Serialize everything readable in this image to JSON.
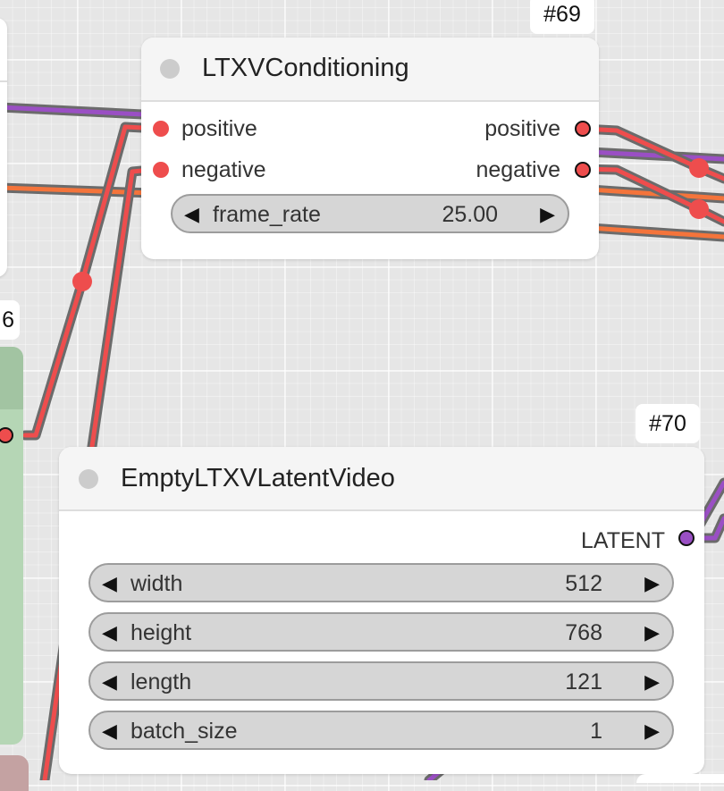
{
  "nodes": {
    "ltxv_conditioning": {
      "id": "#69",
      "title": "LTXVConditioning",
      "inputs": [
        "positive",
        "negative"
      ],
      "outputs": [
        "positive",
        "negative"
      ],
      "widgets": [
        {
          "name": "frame_rate",
          "value": "25.00"
        }
      ]
    },
    "empty_latent_video": {
      "id": "#70",
      "title": "EmptyLTXVLatentVideo",
      "outputs": [
        "LATENT"
      ],
      "widgets": [
        {
          "name": "width",
          "value": "512"
        },
        {
          "name": "height",
          "value": "768"
        },
        {
          "name": "length",
          "value": "121"
        },
        {
          "name": "batch_size",
          "value": "1"
        }
      ]
    },
    "partial_left": {
      "id_fragment": "6"
    }
  },
  "colors": {
    "conditioning_wire": "#ee4d4d",
    "latent_wire": "#9a4fc4",
    "image_wire": "#f4743b",
    "wire_outline": "#6b6b6b",
    "green_node": "#b5d6b5",
    "red_node": "#c4a2a2"
  }
}
